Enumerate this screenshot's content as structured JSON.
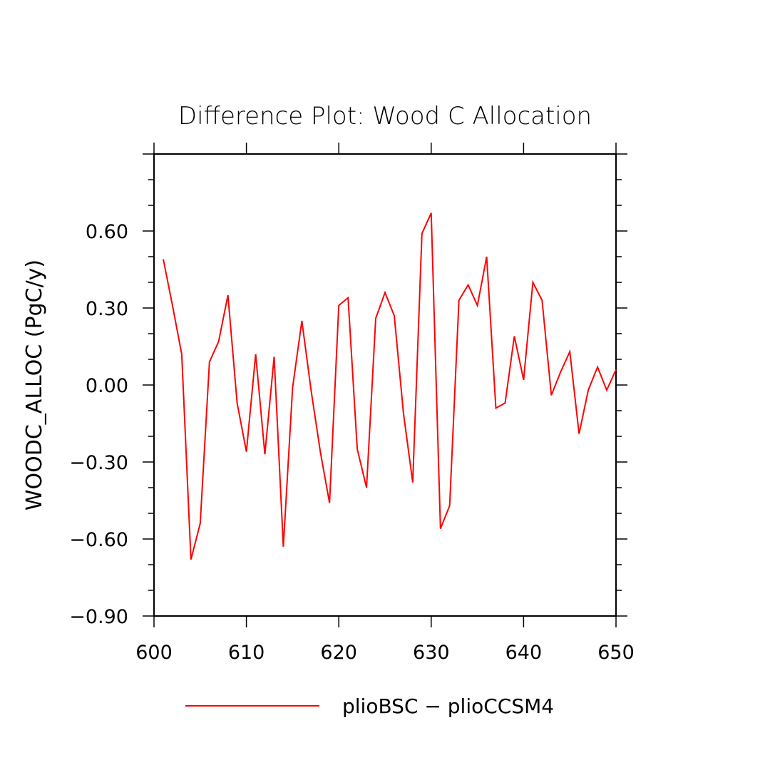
{
  "chart_data": {
    "type": "line",
    "title": "Difference Plot: Wood C Allocation",
    "xlabel": "",
    "ylabel": "WOODC_ALLOC  (PgC/y)",
    "xlim": [
      600,
      650
    ],
    "ylim": [
      -0.9,
      0.9
    ],
    "x_ticks": [
      "600",
      "610",
      "620",
      "630",
      "640",
      "650"
    ],
    "y_ticks": [
      "0.60",
      "0.30",
      "0.00",
      "−0.30",
      "−0.60",
      "−0.90"
    ],
    "grid": false,
    "legend_position": "bottom",
    "series": [
      {
        "name": "plioBSC − plioCCSM4",
        "color": "#ff0000",
        "x": [
          601,
          602,
          603,
          604,
          605,
          606,
          607,
          608,
          609,
          610,
          611,
          612,
          613,
          614,
          615,
          616,
          617,
          618,
          619,
          620,
          621,
          622,
          623,
          624,
          625,
          626,
          627,
          628,
          629,
          630,
          631,
          632,
          633,
          634,
          635,
          636,
          637,
          638,
          639,
          640,
          641,
          642,
          643,
          644,
          645,
          646,
          647,
          648,
          649,
          650
        ],
        "values": [
          0.49,
          0.31,
          0.12,
          -0.68,
          -0.54,
          0.09,
          0.17,
          0.35,
          -0.07,
          -0.26,
          0.12,
          -0.27,
          0.11,
          -0.63,
          -0.01,
          0.25,
          -0.02,
          -0.26,
          -0.46,
          0.31,
          0.34,
          -0.25,
          -0.4,
          0.26,
          0.36,
          0.27,
          -0.11,
          -0.38,
          0.59,
          0.67,
          -0.56,
          -0.47,
          0.33,
          0.39,
          0.31,
          0.5,
          -0.09,
          -0.07,
          0.19,
          0.02,
          0.4,
          0.33,
          -0.04,
          0.05,
          0.13,
          -0.19,
          -0.02,
          0.07,
          -0.02,
          0.06
        ]
      }
    ]
  }
}
